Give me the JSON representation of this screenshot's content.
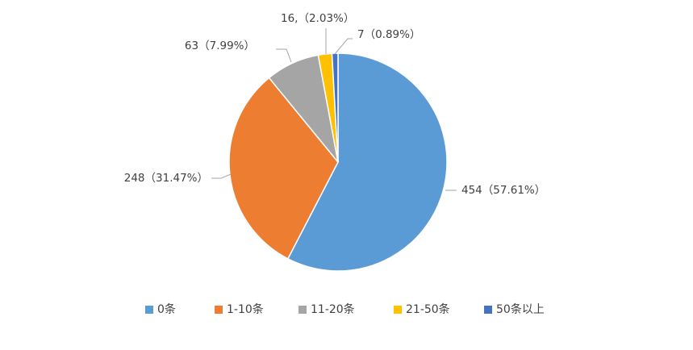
{
  "chart_data": {
    "type": "pie",
    "title": "",
    "legend_position": "bottom",
    "slices": [
      {
        "name": "0条",
        "value": 454,
        "percent": 57.61,
        "label": "454（57.61%）",
        "color": "#5b9bd5"
      },
      {
        "name": "1-10条",
        "value": 248,
        "percent": 31.47,
        "label": "248（31.47%）",
        "color": "#ed7d31"
      },
      {
        "name": "11-20条",
        "value": 63,
        "percent": 7.99,
        "label": "63（7.99%）",
        "color": "#a5a5a5"
      },
      {
        "name": "21-50条",
        "value": 16,
        "percent": 2.03,
        "label": "16,（2.03%）",
        "color": "#ffc000"
      },
      {
        "name": "50条以上",
        "value": 7,
        "percent": 0.89,
        "label": "7（0.89%）",
        "color": "#4472c4"
      }
    ]
  }
}
